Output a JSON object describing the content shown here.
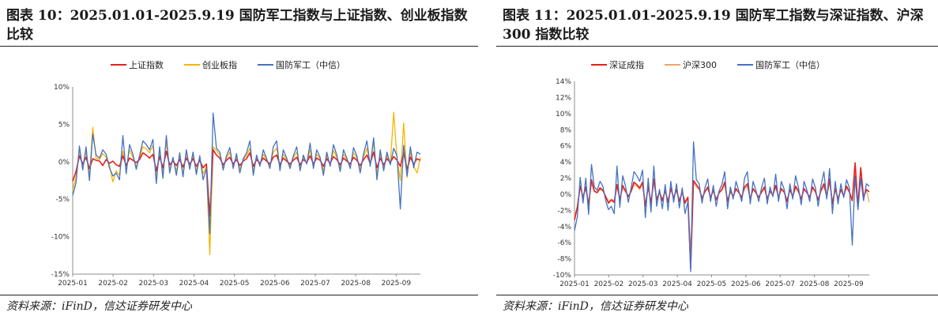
{
  "source_text": "资料来源：iFinD，信达证券研发中心",
  "chart_data": [
    {
      "type": "line",
      "title": "图表 10：2025.01.01-2025.9.19 国防军工指数与上证指数、创业板指数比较",
      "xlabel": "",
      "ylabel": "",
      "ylim": [
        -15,
        10
      ],
      "yticks": [
        -15,
        -10,
        -5,
        0,
        5,
        10
      ],
      "ytick_labels": [
        "-15%",
        "-10%",
        "-5%",
        "0%",
        "5%",
        "10%"
      ],
      "xticks": [
        "2025-01",
        "2025-02",
        "2025-03",
        "2025-04",
        "2025-05",
        "2025-06",
        "2025-07",
        "2025-08",
        "2025-09"
      ],
      "legend_position": "top-center",
      "series": [
        {
          "name": "上证指数",
          "color": "#e8201d",
          "values": [
            -2.6,
            -1.3,
            0.8,
            -0.3,
            0.6,
            -0.9,
            0.4,
            0.2,
            0.1,
            -0.5,
            0.3,
            -0.2,
            0.1,
            -0.4,
            -0.6,
            0.8,
            -0.5,
            0.5,
            0.2,
            -0.1,
            0.3,
            1.2,
            0.9,
            0.5,
            1.0,
            -1.2,
            0.7,
            -0.8,
            1.4,
            -0.4,
            0.1,
            -0.5,
            0.3,
            -0.7,
            0.5,
            -0.3,
            0.4,
            -0.6,
            0.2,
            -0.8,
            -0.3,
            -7.3,
            1.6,
            0.9,
            0.5,
            -0.4,
            0.2,
            0.6,
            -0.3,
            0.3,
            -0.5,
            0.1,
            0.4,
            1.2,
            -0.6,
            0.3,
            -0.2,
            0.5,
            0.1,
            -0.3,
            0.6,
            0.9,
            -0.4,
            0.5,
            0.1,
            -0.3,
            0.2,
            0.6,
            -0.4,
            0.3,
            -0.1,
            0.8,
            -0.3,
            0.5,
            0.2,
            -0.6,
            0.4,
            -0.2,
            0.7,
            0.3,
            -0.4,
            0.5,
            0.1,
            -0.3,
            0.6,
            0.2,
            -0.5,
            0.3,
            0.9,
            -0.2,
            1.3,
            -0.8,
            0.5,
            -0.4,
            0.4,
            -0.1,
            0.7,
            0.2,
            -0.6,
            1.2,
            -1.0,
            0.6,
            -0.3,
            0.4,
            0.2
          ]
        },
        {
          "name": "创业板指",
          "color": "#f7b500",
          "values": [
            -3.8,
            -2.0,
            1.5,
            -0.6,
            1.3,
            -1.9,
            4.6,
            0.5,
            0.3,
            1.1,
            0.6,
            -0.4,
            -2.7,
            -1.2,
            -1.8,
            1.4,
            -0.9,
            1.6,
            0.6,
            -0.6,
            0.5,
            2.0,
            1.7,
            1.2,
            2.2,
            -1.9,
            1.3,
            -1.6,
            2.6,
            -1.0,
            0.4,
            -1.2,
            0.7,
            -1.4,
            1.1,
            -0.7,
            0.8,
            -1.2,
            0.5,
            -1.6,
            -0.6,
            -12.4,
            2.0,
            1.5,
            0.9,
            -0.7,
            0.5,
            1.3,
            -0.6,
            0.7,
            -1.0,
            0.3,
            0.8,
            1.8,
            -1.2,
            0.6,
            -0.4,
            1.0,
            0.3,
            -0.6,
            1.3,
            1.8,
            -0.8,
            1.0,
            0.3,
            -0.6,
            0.5,
            1.3,
            -0.8,
            0.6,
            -0.2,
            1.6,
            -0.6,
            1.0,
            0.4,
            -1.2,
            0.8,
            -0.4,
            1.5,
            0.6,
            -0.8,
            1.0,
            0.3,
            -0.6,
            1.2,
            0.5,
            -1.0,
            0.7,
            1.8,
            -0.4,
            2.6,
            -1.7,
            1.0,
            -0.8,
            0.8,
            -0.3,
            6.6,
            0.5,
            -2.5,
            5.2,
            -2.1,
            1.3,
            -0.6,
            -1.5,
            0.6
          ]
        },
        {
          "name": "国防军工（中信）",
          "color": "#4472c4",
          "values": [
            -4.5,
            -2.8,
            2.1,
            -1.1,
            2.0,
            -2.5,
            3.7,
            0.9,
            0.5,
            1.6,
            1.0,
            -0.8,
            -1.9,
            -1.5,
            -2.4,
            3.5,
            -1.6,
            2.3,
            1.0,
            -1.0,
            0.8,
            2.8,
            2.3,
            1.6,
            3.0,
            -2.9,
            2.0,
            -2.2,
            3.5,
            -1.5,
            0.6,
            -1.8,
            1.2,
            -2.0,
            1.6,
            -1.0,
            1.3,
            -1.7,
            0.8,
            -2.4,
            -0.9,
            -9.6,
            6.5,
            1.8,
            1.3,
            -1.1,
            0.8,
            1.9,
            -0.9,
            1.1,
            -1.5,
            0.4,
            1.2,
            2.8,
            -1.8,
            0.9,
            -0.6,
            1.6,
            0.4,
            -0.9,
            2.0,
            2.8,
            -1.2,
            1.6,
            0.5,
            -0.9,
            0.8,
            2.0,
            -1.2,
            0.9,
            -0.3,
            2.5,
            -0.9,
            1.6,
            0.6,
            -1.8,
            1.3,
            -0.6,
            2.3,
            0.9,
            -1.3,
            1.6,
            0.5,
            -0.9,
            1.9,
            0.8,
            -1.5,
            1.1,
            2.8,
            -0.6,
            3.2,
            -2.4,
            1.6,
            -1.2,
            1.3,
            -0.4,
            1.8,
            0.8,
            -6.3,
            2.2,
            -1.9,
            2.0,
            -0.8,
            1.3,
            1.0
          ]
        }
      ]
    },
    {
      "type": "line",
      "title": "图表 11：2025.01.01-2025.9.19 国防军工指数与深证指数、沪深 300 指数比较",
      "xlabel": "",
      "ylabel": "",
      "ylim": [
        -10,
        14
      ],
      "yticks": [
        -10,
        -8,
        -6,
        -4,
        -2,
        0,
        2,
        4,
        6,
        8,
        10,
        12,
        14
      ],
      "ytick_labels": [
        "-10%",
        "-8%",
        "-6%",
        "-4%",
        "-2%",
        "0%",
        "2%",
        "4%",
        "6%",
        "8%",
        "10%",
        "12%",
        "14%"
      ],
      "xticks": [
        "2025-01",
        "2025-02",
        "2025-03",
        "2025-04",
        "2025-05",
        "2025-06",
        "2025-07",
        "2025-08",
        "2025-09"
      ],
      "legend_position": "top-center",
      "series": [
        {
          "name": "深证成指",
          "color": "#e8201d",
          "values": [
            -3.2,
            -1.6,
            1.0,
            -0.4,
            0.9,
            -1.3,
            1.8,
            0.4,
            0.2,
            0.8,
            0.5,
            -0.3,
            -1.1,
            -0.7,
            -1.0,
            1.2,
            -0.7,
            1.1,
            0.4,
            -0.3,
            0.4,
            1.5,
            1.2,
            0.8,
            1.5,
            -1.5,
            1.0,
            -1.1,
            1.9,
            -0.7,
            0.3,
            -0.8,
            0.5,
            -1.0,
            0.8,
            -0.5,
            0.6,
            -0.9,
            0.3,
            -1.1,
            -0.4,
            -9.2,
            1.7,
            1.2,
            0.7,
            -0.5,
            0.3,
            0.9,
            -0.4,
            0.5,
            -0.7,
            0.2,
            0.6,
            1.5,
            -0.9,
            0.4,
            -0.3,
            0.7,
            0.2,
            -0.4,
            0.9,
            1.3,
            -0.6,
            0.7,
            0.2,
            -0.4,
            0.3,
            0.9,
            -0.6,
            0.4,
            -0.1,
            1.1,
            -0.4,
            0.7,
            0.3,
            -0.9,
            0.6,
            -0.3,
            1.0,
            0.4,
            -0.6,
            0.7,
            0.2,
            -0.4,
            0.9,
            0.3,
            -0.7,
            0.5,
            1.3,
            -0.3,
            1.9,
            -1.2,
            0.7,
            -0.6,
            0.6,
            -0.2,
            1.0,
            0.3,
            -0.8,
            3.9,
            -1.5,
            3.3,
            -0.4,
            0.6,
            0.3
          ]
        },
        {
          "name": "沪深300",
          "color": "#f4a460",
          "values": [
            -2.8,
            -1.5,
            0.9,
            -0.3,
            0.7,
            -1.0,
            1.4,
            0.3,
            0.2,
            0.6,
            0.4,
            -0.2,
            -0.9,
            -0.6,
            -0.8,
            1.0,
            -0.6,
            0.8,
            0.3,
            -0.2,
            0.3,
            1.2,
            1.0,
            0.6,
            1.2,
            -1.2,
            0.8,
            -0.9,
            1.5,
            -0.5,
            0.2,
            -0.6,
            0.4,
            -0.8,
            0.6,
            -0.4,
            0.5,
            -0.7,
            0.3,
            -0.9,
            -0.3,
            -7.1,
            1.5,
            0.9,
            0.6,
            -0.4,
            0.3,
            0.7,
            -0.3,
            0.4,
            -0.6,
            0.1,
            0.5,
            1.2,
            -0.7,
            0.3,
            -0.2,
            0.6,
            0.2,
            -0.3,
            0.7,
            1.0,
            -0.5,
            0.6,
            0.2,
            -0.3,
            0.2,
            0.7,
            -0.5,
            0.3,
            -0.1,
            0.9,
            -0.3,
            0.6,
            0.2,
            -0.7,
            0.5,
            -0.2,
            0.8,
            0.3,
            -0.5,
            0.6,
            0.2,
            -0.3,
            0.7,
            0.3,
            -0.6,
            0.4,
            1.0,
            -0.2,
            1.5,
            -0.9,
            0.6,
            -0.5,
            0.5,
            -0.1,
            0.8,
            0.2,
            -0.6,
            2.4,
            -1.1,
            1.6,
            -0.3,
            0.5,
            -1.0
          ]
        },
        {
          "name": "国防军工（中信）",
          "color": "#4472c4",
          "values": [
            -4.5,
            -2.8,
            2.1,
            -1.1,
            2.0,
            -2.5,
            3.7,
            0.9,
            0.5,
            1.6,
            1.0,
            -0.8,
            -1.9,
            -1.5,
            -2.4,
            3.5,
            -1.6,
            2.3,
            1.0,
            -1.0,
            0.8,
            2.8,
            2.3,
            1.6,
            3.0,
            -2.9,
            2.0,
            -2.2,
            3.5,
            -1.5,
            0.6,
            -1.8,
            1.2,
            -2.0,
            1.6,
            -1.0,
            1.3,
            -1.7,
            0.8,
            -2.4,
            -0.9,
            -9.6,
            6.5,
            1.8,
            1.3,
            -1.1,
            0.8,
            1.9,
            -0.9,
            1.1,
            -1.5,
            0.4,
            1.2,
            2.8,
            -1.8,
            0.9,
            -0.6,
            1.6,
            0.4,
            -0.9,
            2.0,
            2.8,
            -1.2,
            1.6,
            0.5,
            -0.9,
            0.8,
            2.0,
            -1.2,
            0.9,
            -0.3,
            2.5,
            -0.9,
            1.6,
            0.6,
            -1.8,
            1.3,
            -0.6,
            2.3,
            0.9,
            -1.3,
            1.6,
            0.5,
            -0.9,
            1.9,
            0.8,
            -1.5,
            1.1,
            2.8,
            -0.6,
            3.2,
            -2.4,
            1.6,
            -1.2,
            1.3,
            -0.4,
            1.8,
            0.8,
            -6.3,
            2.2,
            -1.9,
            2.0,
            -0.8,
            1.3,
            1.0
          ]
        }
      ]
    }
  ]
}
